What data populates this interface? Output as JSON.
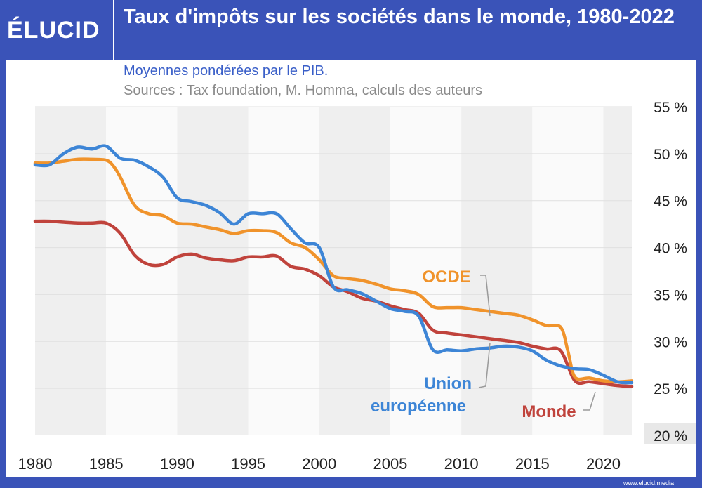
{
  "brand": {
    "logo_text": "ÉLUCID",
    "footer_url": "www.elucid.media"
  },
  "chart_data": {
    "type": "line",
    "title": "Taux d'impôts sur les sociétés dans le monde, 1980-2022",
    "subtitle": "Moyennes pondérées par le PIB.",
    "sources": "Sources : Tax foundation, M. Homma, calculs des auteurs",
    "xlim": [
      1980,
      2022
    ],
    "ylim": [
      20,
      55
    ],
    "x_ticks": [
      "1980",
      "1985",
      "1990",
      "1995",
      "2000",
      "2005",
      "2010",
      "2015",
      "2020"
    ],
    "y_ticks": [
      "20 %",
      "25 %",
      "30 %",
      "35 %",
      "40 %",
      "45 %",
      "50 %",
      "55 %"
    ],
    "y_axis_position": "right",
    "background": "alternating-grey-bands",
    "series": [
      {
        "name": "OCDE",
        "color": "#f0932b",
        "points": [
          [
            1980,
            49
          ],
          [
            1981,
            49
          ],
          [
            1982,
            49.2
          ],
          [
            1983,
            49.4
          ],
          [
            1984,
            49.4
          ],
          [
            1985,
            49.3
          ],
          [
            1985.5,
            48.7
          ],
          [
            1986,
            47.5
          ],
          [
            1987,
            44.5
          ],
          [
            1988,
            43.6
          ],
          [
            1989,
            43.4
          ],
          [
            1990,
            42.6
          ],
          [
            1991,
            42.5
          ],
          [
            1992,
            42.2
          ],
          [
            1993,
            41.9
          ],
          [
            1994,
            41.5
          ],
          [
            1995,
            41.8
          ],
          [
            1996,
            41.8
          ],
          [
            1997,
            41.6
          ],
          [
            1998,
            40.5
          ],
          [
            1999,
            40
          ],
          [
            2000,
            38.7
          ],
          [
            2001,
            37
          ],
          [
            2002,
            36.7
          ],
          [
            2003,
            36.5
          ],
          [
            2004,
            36.1
          ],
          [
            2005,
            35.6
          ],
          [
            2006,
            35.4
          ],
          [
            2007,
            35
          ],
          [
            2008,
            33.7
          ],
          [
            2009,
            33.6
          ],
          [
            2010,
            33.6
          ],
          [
            2011,
            33.4
          ],
          [
            2012,
            33.2
          ],
          [
            2013,
            33
          ],
          [
            2014,
            32.8
          ],
          [
            2015,
            32.3
          ],
          [
            2016,
            31.7
          ],
          [
            2017,
            31.5
          ],
          [
            2017.5,
            29
          ],
          [
            2018,
            26.2
          ],
          [
            2019,
            26.1
          ],
          [
            2020,
            25.8
          ],
          [
            2021,
            25.7
          ],
          [
            2022,
            25.8
          ]
        ]
      },
      {
        "name": "Union européenne",
        "color": "#3d85d6",
        "points": [
          [
            1980,
            48.8
          ],
          [
            1981,
            48.8
          ],
          [
            1982,
            50
          ],
          [
            1983,
            50.7
          ],
          [
            1984,
            50.5
          ],
          [
            1985,
            50.8
          ],
          [
            1986,
            49.5
          ],
          [
            1987,
            49.3
          ],
          [
            1988,
            48.6
          ],
          [
            1989,
            47.5
          ],
          [
            1990,
            45.3
          ],
          [
            1991,
            44.9
          ],
          [
            1992,
            44.5
          ],
          [
            1993,
            43.7
          ],
          [
            1994,
            42.5
          ],
          [
            1995,
            43.6
          ],
          [
            1996,
            43.6
          ],
          [
            1997,
            43.6
          ],
          [
            1998,
            42
          ],
          [
            1999,
            40.5
          ],
          [
            2000,
            40
          ],
          [
            2001,
            35.8
          ],
          [
            2002,
            35.5
          ],
          [
            2003,
            35.1
          ],
          [
            2004,
            34.3
          ],
          [
            2005,
            33.5
          ],
          [
            2006,
            33.2
          ],
          [
            2007,
            32.7
          ],
          [
            2008,
            29.1
          ],
          [
            2009,
            29.1
          ],
          [
            2010,
            29
          ],
          [
            2011,
            29.2
          ],
          [
            2012,
            29.3
          ],
          [
            2013,
            29.5
          ],
          [
            2014,
            29.4
          ],
          [
            2015,
            29
          ],
          [
            2016,
            28
          ],
          [
            2017,
            27.4
          ],
          [
            2018,
            27.1
          ],
          [
            2019,
            27
          ],
          [
            2020,
            26.4
          ],
          [
            2021,
            25.7
          ],
          [
            2022,
            25.6
          ]
        ]
      },
      {
        "name": "Monde",
        "color": "#c0433c",
        "points": [
          [
            1980,
            42.8
          ],
          [
            1981,
            42.8
          ],
          [
            1982,
            42.7
          ],
          [
            1983,
            42.6
          ],
          [
            1984,
            42.6
          ],
          [
            1985,
            42.6
          ],
          [
            1986,
            41.5
          ],
          [
            1987,
            39.2
          ],
          [
            1988,
            38.2
          ],
          [
            1989,
            38.2
          ],
          [
            1990,
            39
          ],
          [
            1991,
            39.3
          ],
          [
            1992,
            38.9
          ],
          [
            1993,
            38.7
          ],
          [
            1994,
            38.6
          ],
          [
            1995,
            39
          ],
          [
            1996,
            39
          ],
          [
            1997,
            39.1
          ],
          [
            1998,
            38
          ],
          [
            1999,
            37.7
          ],
          [
            2000,
            37
          ],
          [
            2001,
            35.8
          ],
          [
            2002,
            35.3
          ],
          [
            2003,
            34.6
          ],
          [
            2004,
            34.3
          ],
          [
            2005,
            33.8
          ],
          [
            2006,
            33.4
          ],
          [
            2007,
            33
          ],
          [
            2008,
            31.2
          ],
          [
            2009,
            30.9
          ],
          [
            2010,
            30.7
          ],
          [
            2011,
            30.5
          ],
          [
            2012,
            30.3
          ],
          [
            2013,
            30.1
          ],
          [
            2014,
            29.9
          ],
          [
            2015,
            29.5
          ],
          [
            2016,
            29.2
          ],
          [
            2017,
            29
          ],
          [
            2018,
            25.8
          ],
          [
            2019,
            25.7
          ],
          [
            2020,
            25.5
          ],
          [
            2021,
            25.3
          ],
          [
            2022,
            25.2
          ]
        ]
      }
    ],
    "labels": [
      {
        "series": "OCDE",
        "text": "OCDE"
      },
      {
        "series": "Union européenne",
        "text": "Union\neuropéenne"
      },
      {
        "series": "Monde",
        "text": "Monde"
      }
    ]
  }
}
